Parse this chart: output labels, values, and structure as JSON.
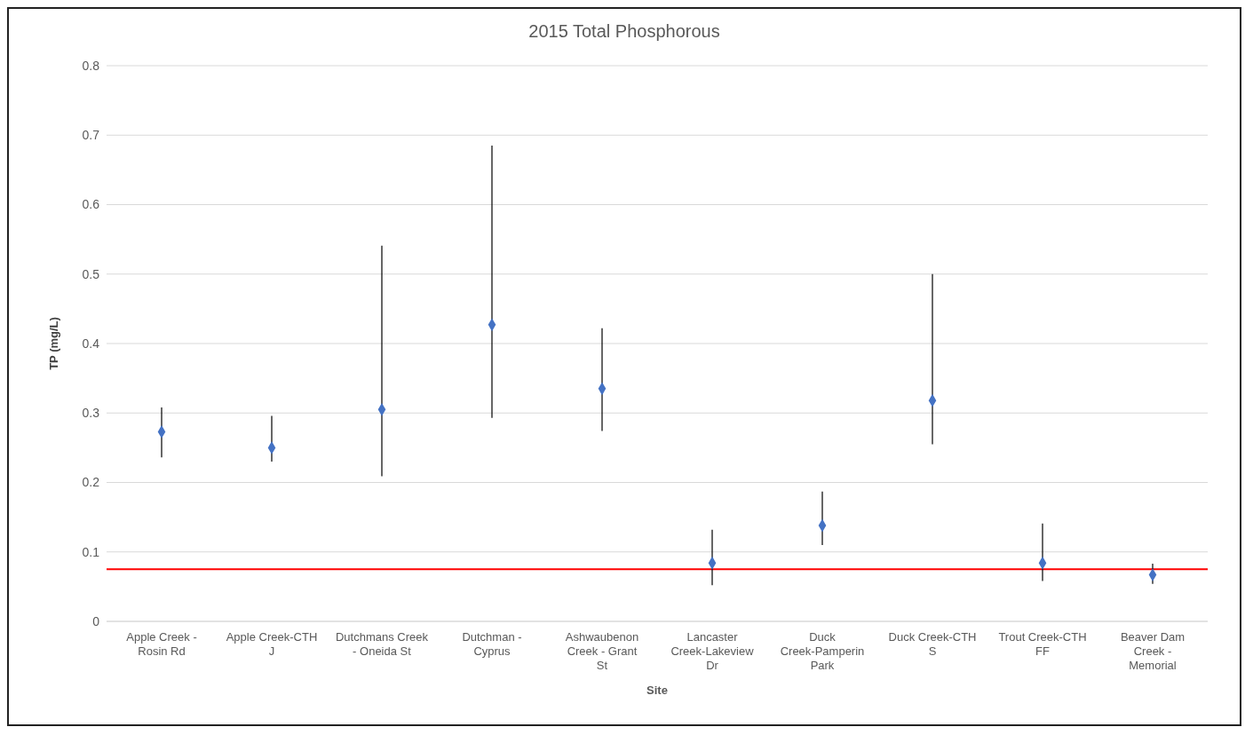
{
  "chart_data": {
    "type": "scatter",
    "title": "2015 Total Phosphorous",
    "xlabel": "Site",
    "ylabel": "TP (mg/L)",
    "categories": [
      "Apple Creek - Rosin Rd",
      "Apple Creek-CTH J",
      "Dutchmans Creek - Oneida St",
      "Dutchman - Cyprus",
      "Ashwaubenon Creek - Grant St",
      "Lancaster Creek-Lakeview Dr",
      "Duck Creek-Pamperin Park",
      "Duck Creek-CTH S",
      "Trout Creek-CTH FF",
      "Beaver Dam Creek - Memorial"
    ],
    "values": [
      0.273,
      0.25,
      0.305,
      0.427,
      0.335,
      0.084,
      0.138,
      0.318,
      0.084,
      0.067
    ],
    "errors": [
      [
        0.236,
        0.308
      ],
      [
        0.23,
        0.296
      ],
      [
        0.209,
        0.541
      ],
      [
        0.293,
        0.685
      ],
      [
        0.274,
        0.422
      ],
      [
        0.052,
        0.132
      ],
      [
        0.11,
        0.187
      ],
      [
        0.255,
        0.5
      ],
      [
        0.058,
        0.141
      ],
      [
        0.054,
        0.083
      ]
    ],
    "color": "#4472c4",
    "marker": "diamond",
    "ylim": [
      0,
      0.8
    ],
    "yticks": [
      0,
      0.1,
      0.2,
      0.3,
      0.4,
      0.5,
      0.6,
      0.7,
      0.8
    ],
    "grid": "y",
    "ref_lines": [
      {
        "axis": "y",
        "value": 0.075,
        "color": "#ff0000"
      }
    ]
  }
}
